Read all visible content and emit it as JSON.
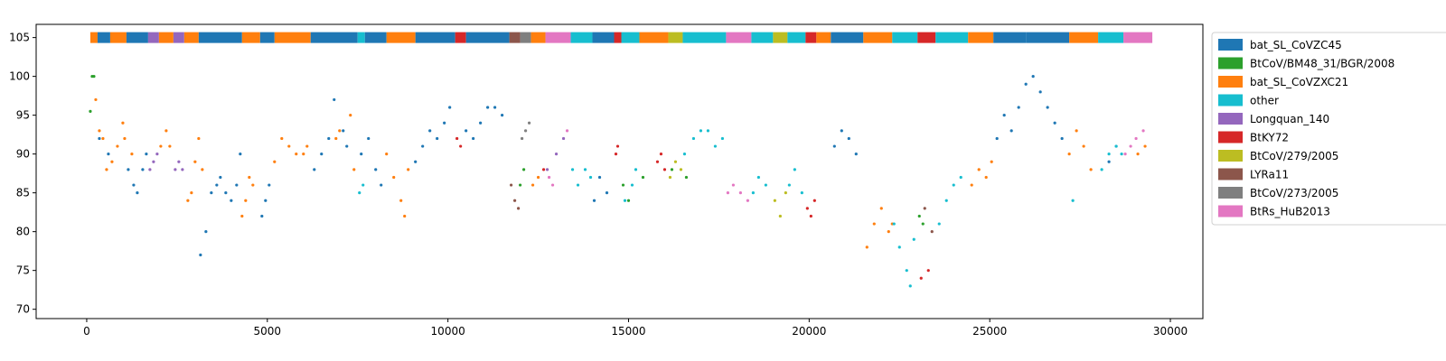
{
  "chart_data": {
    "type": "scatter",
    "title": "",
    "xlabel": "",
    "ylabel": "",
    "xlim": [
      -1400,
      30900
    ],
    "ylim": [
      68.8,
      106.7
    ],
    "xticks": [
      0,
      5000,
      10000,
      15000,
      20000,
      25000,
      30000
    ],
    "yticks": [
      70,
      75,
      80,
      85,
      90,
      95,
      100,
      105
    ],
    "grid": false,
    "legend_position": "outside-right",
    "colors": {
      "bat_SL_CoVZC45": "#1f77b4",
      "BtCoV/BM48_31/BGR/2008": "#2ca02c",
      "bat_SL_CoVZXC21": "#ff7f0e",
      "other": "#17becf",
      "Longquan_140": "#9467bd",
      "BtKY72": "#d62728",
      "BtCoV/279/2005": "#bcbd22",
      "LYRa11": "#8c564b",
      "BtCoV/273/2005": "#7f7f7f",
      "BtRs_HuB2013": "#e377c2"
    },
    "legend": [
      {
        "label": "bat_SL_CoVZC45",
        "color": "#1f77b4"
      },
      {
        "label": "BtCoV/BM48_31/BGR/2008",
        "color": "#2ca02c"
      },
      {
        "label": "bat_SL_CoVZXC21",
        "color": "#ff7f0e"
      },
      {
        "label": "other",
        "color": "#17becf"
      },
      {
        "label": "Longquan_140",
        "color": "#9467bd"
      },
      {
        "label": "BtKY72",
        "color": "#d62728"
      },
      {
        "label": "BtCoV/279/2005",
        "color": "#bcbd22"
      },
      {
        "label": "LYRa11",
        "color": "#8c564b"
      },
      {
        "label": "BtCoV/273/2005",
        "color": "#7f7f7f"
      },
      {
        "label": "BtRs_HuB2013",
        "color": "#e377c2"
      }
    ],
    "strip": {
      "y": 105,
      "segments": [
        [
          100,
          300,
          "bat_SL_CoVZXC21"
        ],
        [
          300,
          650,
          "bat_SL_CoVZC45"
        ],
        [
          650,
          1100,
          "bat_SL_CoVZXC21"
        ],
        [
          1100,
          1700,
          "bat_SL_CoVZC45"
        ],
        [
          1700,
          2000,
          "Longquan_140"
        ],
        [
          2000,
          2400,
          "bat_SL_CoVZXC21"
        ],
        [
          2400,
          2700,
          "Longquan_140"
        ],
        [
          2700,
          3100,
          "bat_SL_CoVZXC21"
        ],
        [
          3100,
          4300,
          "bat_SL_CoVZC45"
        ],
        [
          4300,
          4800,
          "bat_SL_CoVZXC21"
        ],
        [
          4800,
          5200,
          "bat_SL_CoVZC45"
        ],
        [
          5200,
          6200,
          "bat_SL_CoVZXC21"
        ],
        [
          6200,
          7500,
          "bat_SL_CoVZC45"
        ],
        [
          7500,
          7700,
          "other"
        ],
        [
          7700,
          8300,
          "bat_SL_CoVZC45"
        ],
        [
          8300,
          9100,
          "bat_SL_CoVZXC21"
        ],
        [
          9100,
          10200,
          "bat_SL_CoVZC45"
        ],
        [
          10200,
          10500,
          "BtKY72"
        ],
        [
          10500,
          11700,
          "bat_SL_CoVZC45"
        ],
        [
          11700,
          12000,
          "LYRa11"
        ],
        [
          12000,
          12300,
          "BtCoV/273/2005"
        ],
        [
          12300,
          12700,
          "bat_SL_CoVZXC21"
        ],
        [
          12700,
          13400,
          "BtRs_HuB2013"
        ],
        [
          13400,
          14000,
          "other"
        ],
        [
          14000,
          14600,
          "bat_SL_CoVZC45"
        ],
        [
          14600,
          14800,
          "BtKY72"
        ],
        [
          14800,
          15300,
          "other"
        ],
        [
          15300,
          16100,
          "bat_SL_CoVZXC21"
        ],
        [
          16100,
          16500,
          "BtCoV/279/2005"
        ],
        [
          16500,
          17700,
          "other"
        ],
        [
          17700,
          18400,
          "BtRs_HuB2013"
        ],
        [
          18400,
          19000,
          "other"
        ],
        [
          19000,
          19400,
          "BtCoV/279/2005"
        ],
        [
          19400,
          19900,
          "other"
        ],
        [
          19900,
          20200,
          "BtKY72"
        ],
        [
          20200,
          20600,
          "bat_SL_CoVZXC21"
        ],
        [
          20600,
          21500,
          "bat_SL_CoVZC45"
        ],
        [
          21500,
          22300,
          "bat_SL_CoVZXC21"
        ],
        [
          22300,
          23000,
          "other"
        ],
        [
          23000,
          23500,
          "BtKY72"
        ],
        [
          23500,
          24400,
          "other"
        ],
        [
          24400,
          25100,
          "bat_SL_CoVZXC21"
        ],
        [
          25100,
          26000,
          "bat_SL_CoVZC45"
        ],
        [
          26000,
          27200,
          "bat_SL_CoVZC45"
        ],
        [
          27200,
          28000,
          "bat_SL_CoVZXC21"
        ],
        [
          28000,
          28700,
          "other"
        ],
        [
          28700,
          29500,
          "BtRs_HuB2013"
        ]
      ]
    },
    "series": [
      {
        "color_key": "BtCoV/BM48_31/BGR/2008",
        "x": [
          100,
          150,
          200,
          12000,
          12100,
          14850,
          15000,
          15400,
          16200,
          16600,
          23050,
          23150
        ],
        "y": [
          95.5,
          100,
          100,
          86,
          88,
          86,
          84,
          87,
          88,
          87,
          82,
          81
        ]
      },
      {
        "color_key": "bat_SL_CoVZXC21",
        "x": [
          250,
          350,
          450,
          550,
          700,
          850,
          1000,
          1050,
          1250,
          2050,
          2200,
          2300,
          2800,
          2900,
          3000,
          3100,
          3200,
          4300,
          4400,
          4500,
          4600,
          5200,
          5400,
          5600,
          5800,
          6000,
          6100,
          6900,
          7000,
          7300,
          7400,
          8300,
          8500,
          8700,
          8800,
          8900,
          12350,
          12500,
          21600,
          21800,
          22000,
          22200,
          22300,
          24500,
          24700,
          24900,
          25050,
          27200,
          27400,
          27600,
          27800,
          29100,
          29300
        ],
        "y": [
          97,
          93,
          92,
          88,
          89,
          91,
          94,
          92,
          90,
          91,
          93,
          91,
          84,
          85,
          89,
          92,
          88,
          82,
          84,
          87,
          86,
          89,
          92,
          91,
          90,
          90,
          91,
          92,
          93,
          95,
          88,
          90,
          87,
          84,
          82,
          88,
          86,
          87,
          78,
          81,
          83,
          80,
          81,
          86,
          88,
          87,
          89,
          90,
          93,
          91,
          88,
          90,
          91
        ]
      },
      {
        "color_key": "bat_SL_CoVZC45",
        "x": [
          350,
          600,
          1150,
          1300,
          1400,
          1550,
          1650,
          3150,
          3300,
          3450,
          3600,
          3700,
          3850,
          4000,
          4150,
          4250,
          4850,
          4950,
          5050,
          6300,
          6500,
          6700,
          6850,
          7100,
          7200,
          7600,
          7800,
          8000,
          8150,
          9100,
          9300,
          9500,
          9700,
          9900,
          10050,
          10500,
          10700,
          10900,
          11100,
          11300,
          11500,
          14050,
          14200,
          14400,
          20700,
          20900,
          21100,
          21300,
          25200,
          25400,
          25600,
          25800,
          26000,
          26200,
          26400,
          26600,
          26800,
          27000,
          28300,
          28500
        ],
        "y": [
          92,
          90,
          88,
          86,
          85,
          88,
          90,
          77,
          80,
          85,
          86,
          87,
          85,
          84,
          86,
          90,
          82,
          84,
          86,
          88,
          90,
          92,
          97,
          93,
          91,
          90,
          92,
          88,
          86,
          89,
          91,
          93,
          92,
          94,
          96,
          93,
          92,
          94,
          96,
          96,
          95,
          84,
          87,
          85,
          91,
          93,
          92,
          90,
          92,
          95,
          93,
          96,
          99,
          100,
          98,
          96,
          94,
          92,
          89,
          91
        ]
      },
      {
        "color_key": "other",
        "x": [
          7550,
          7650,
          13450,
          13600,
          13800,
          13950,
          14900,
          15100,
          15200,
          16550,
          16800,
          17000,
          17200,
          17400,
          17600,
          18450,
          18600,
          18800,
          19450,
          19600,
          19800,
          22350,
          22500,
          22700,
          22800,
          22900,
          23600,
          23800,
          24000,
          24200,
          27300,
          28100,
          28300,
          28500,
          28650
        ],
        "y": [
          85,
          86,
          88,
          86,
          88,
          87,
          84,
          86,
          88,
          90,
          92,
          93,
          93,
          91,
          92,
          85,
          87,
          86,
          86,
          88,
          85,
          81,
          78,
          75,
          73,
          79,
          81,
          84,
          86,
          87,
          84,
          88,
          90,
          91,
          90
        ]
      },
      {
        "color_key": "Longquan_140",
        "x": [
          1750,
          1850,
          1950,
          2450,
          2550,
          2650,
          12750,
          13000,
          13200
        ],
        "y": [
          88,
          89,
          90,
          88,
          89,
          88,
          88,
          90,
          92
        ]
      },
      {
        "color_key": "BtKY72",
        "x": [
          10250,
          10350,
          12650,
          14650,
          14700,
          15800,
          15900,
          16000,
          19950,
          20050,
          20150,
          23100,
          23300
        ],
        "y": [
          92,
          91,
          88,
          90,
          91,
          89,
          90,
          88,
          83,
          82,
          84,
          74,
          75
        ]
      },
      {
        "color_key": "BtCoV/279/2005",
        "x": [
          16150,
          16300,
          16450,
          19050,
          19200,
          19350
        ],
        "y": [
          87,
          89,
          88,
          84,
          82,
          85
        ]
      },
      {
        "color_key": "LYRa11",
        "x": [
          11750,
          11850,
          11950,
          23200,
          23400
        ],
        "y": [
          86,
          84,
          83,
          83,
          80
        ]
      },
      {
        "color_key": "BtCoV/273/2005",
        "x": [
          12050,
          12150,
          12250
        ],
        "y": [
          92,
          93,
          94
        ]
      },
      {
        "color_key": "BtRs_HuB2013",
        "x": [
          12800,
          12900,
          13300,
          17750,
          17900,
          18100,
          18300,
          28750,
          28900,
          29050,
          29250
        ],
        "y": [
          87,
          86,
          93,
          85,
          86,
          85,
          84,
          90,
          91,
          92,
          93
        ]
      }
    ]
  }
}
